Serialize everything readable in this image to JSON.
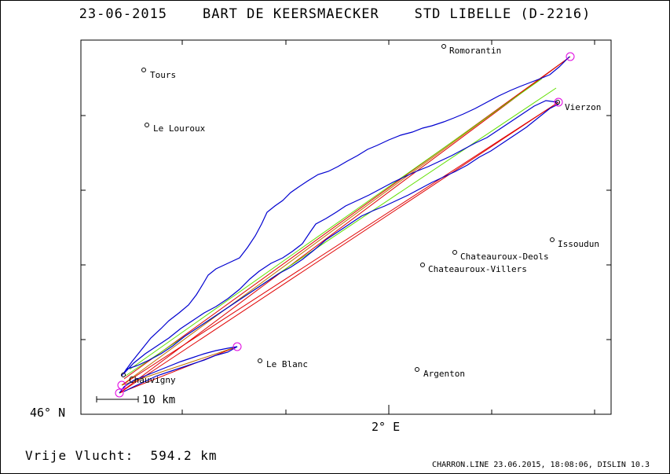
{
  "header": {
    "title": "23-06-2015    BART DE KEERSMAECKER    STD LIBELLE (D-2216)"
  },
  "axes": {
    "y_label": "46° N",
    "x_label": "2° E"
  },
  "footer": {
    "distance_text": "Vrije Vlucht:  594.2 km",
    "info_text": "CHARRON.LINE 23.06.2015, 18:08:06, DISLIN 10.3"
  },
  "scale": {
    "label": "10 km"
  },
  "colors": {
    "track": "#0000d0",
    "task_red": "#e00000",
    "task_orange": "#c07000",
    "task_green": "#60e000",
    "turnpoint": "#e000e0",
    "axis": "#000000"
  },
  "chart_data": {
    "type": "map",
    "title": "23-06-2015    BART DE KEERSMAECKER    STD LIBELLE (D-2216)",
    "xlabel": "2° E",
    "ylabel": "46° N",
    "cities": [
      {
        "name": "Tours"
      },
      {
        "name": "Le Louroux"
      },
      {
        "name": "Romorantin"
      },
      {
        "name": "Vierzon"
      },
      {
        "name": "Issoudun"
      },
      {
        "name": "Chateauroux-Deols"
      },
      {
        "name": "Chateauroux-Villers"
      },
      {
        "name": "Le Blanc"
      },
      {
        "name": "Argenton"
      },
      {
        "name": "Chauvigny"
      }
    ],
    "free_flight_km": 594.2
  }
}
